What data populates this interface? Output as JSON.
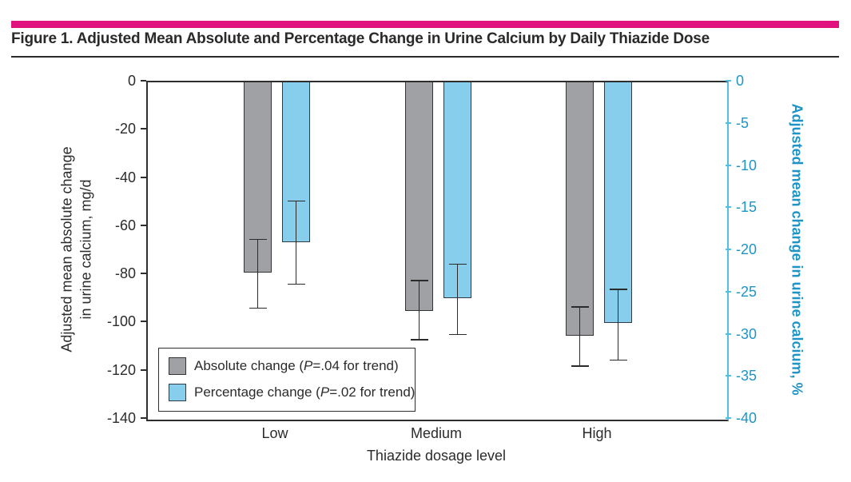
{
  "chart_data": {
    "type": "bar",
    "title": "Figure 1. Adjusted Mean Absolute and Percentage Change in Urine Calcium by Daily Thiazide Dose",
    "accent_color": "#E0117F",
    "categories": [
      "Low",
      "Medium",
      "High"
    ],
    "xlabel": "Thiazide dosage level",
    "grid": "off",
    "legend_position": "inside-bottom-left",
    "left_axis": {
      "label": "Adjusted mean absolute change in urine calcium, mg/d",
      "label_lines": [
        "Adjusted mean absolute change",
        "in urine calcium, mg/d"
      ],
      "ticks": [
        0,
        -20,
        -40,
        -60,
        -80,
        -100,
        -120,
        -140
      ],
      "ylim": [
        0,
        -140
      ],
      "axis_color": "#2E2E2E",
      "label_color": "#2B2B2B"
    },
    "right_axis": {
      "label": "Adjusted mean change in urine calcium, %",
      "ticks": [
        0,
        -5,
        -10,
        -15,
        -20,
        -25,
        -30,
        -35,
        -40
      ],
      "ylim": [
        0,
        -40
      ],
      "axis_color": "#54BEE0",
      "label_color": "#1F94C4"
    },
    "series": [
      {
        "name": "Absolute change",
        "axis": "left",
        "unit": "mg/d",
        "color": "#A0A1A4",
        "border_color": "#333333",
        "values": [
          -79,
          -95,
          -105
        ],
        "ci_upper": [
          -65,
          -82,
          -93
        ],
        "ci_lower": [
          -94,
          -107,
          -118
        ],
        "legend_pre": "Absolute change (",
        "legend_p": "P",
        "legend_post": "=.04 for trend)"
      },
      {
        "name": "Percentage change",
        "axis": "right",
        "unit": "%",
        "color": "#86CEEC",
        "border_color": "#2F3B46",
        "values": [
          -19,
          -25.6,
          -28.5
        ],
        "ci_upper": [
          -14,
          -21.5,
          -24.5
        ],
        "ci_lower": [
          -24,
          -30,
          -33
        ],
        "legend_pre": "Percentage change (",
        "legend_p": "P",
        "legend_post": "=.02 for trend)"
      }
    ]
  }
}
